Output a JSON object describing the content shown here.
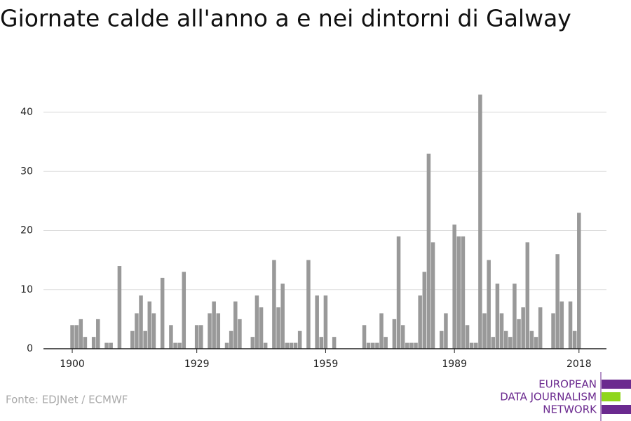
{
  "chart_data": {
    "type": "bar",
    "title": "Giornate calde all'anno a e nei dintorni di Galway",
    "x": [
      1900,
      1901,
      1902,
      1903,
      1904,
      1905,
      1906,
      1907,
      1908,
      1909,
      1910,
      1911,
      1912,
      1913,
      1914,
      1915,
      1916,
      1917,
      1918,
      1919,
      1920,
      1921,
      1922,
      1923,
      1924,
      1925,
      1926,
      1927,
      1928,
      1929,
      1930,
      1931,
      1932,
      1933,
      1934,
      1935,
      1936,
      1937,
      1938,
      1939,
      1940,
      1941,
      1942,
      1943,
      1944,
      1945,
      1946,
      1947,
      1948,
      1949,
      1950,
      1951,
      1952,
      1953,
      1954,
      1955,
      1956,
      1957,
      1958,
      1959,
      1960,
      1961,
      1962,
      1963,
      1964,
      1965,
      1966,
      1967,
      1968,
      1969,
      1970,
      1971,
      1972,
      1973,
      1974,
      1975,
      1976,
      1977,
      1978,
      1979,
      1980,
      1981,
      1982,
      1983,
      1984,
      1985,
      1986,
      1987,
      1988,
      1989,
      1990,
      1991,
      1992,
      1993,
      1994,
      1995,
      1996,
      1997,
      1998,
      1999,
      2000,
      2001,
      2002,
      2003,
      2004,
      2005,
      2006,
      2007,
      2008,
      2009,
      2010,
      2011,
      2012,
      2013,
      2014,
      2015,
      2016,
      2017,
      2018
    ],
    "values": [
      4,
      4,
      5,
      2,
      0,
      2,
      5,
      0,
      1,
      1,
      0,
      14,
      0,
      0,
      3,
      6,
      9,
      3,
      8,
      6,
      0,
      12,
      0,
      4,
      1,
      1,
      13,
      0,
      0,
      4,
      4,
      0,
      6,
      8,
      6,
      0,
      1,
      3,
      8,
      5,
      0,
      0,
      2,
      9,
      7,
      1,
      0,
      15,
      7,
      11,
      1,
      1,
      1,
      3,
      0,
      15,
      0,
      9,
      2,
      9,
      0,
      2,
      0,
      0,
      0,
      0,
      0,
      0,
      4,
      1,
      1,
      1,
      6,
      2,
      0,
      5,
      19,
      4,
      1,
      1,
      1,
      9,
      13,
      33,
      18,
      0,
      3,
      6,
      0,
      21,
      19,
      19,
      4,
      1,
      1,
      43,
      6,
      15,
      2,
      11,
      6,
      3,
      2,
      11,
      5,
      7,
      18,
      3,
      2,
      7,
      0,
      0,
      6,
      16,
      8,
      0,
      8,
      3,
      23
    ],
    "color": "#999999",
    "xlim": [
      1893.3,
      2024.4
    ],
    "xticks": [
      1900,
      1929,
      1959,
      1989,
      2018
    ],
    "ylim": [
      0,
      40
    ],
    "yticks": [
      0,
      10,
      20,
      30,
      40
    ],
    "grid": true,
    "source": "Fonte: EDJNet / ECMWF",
    "logo": [
      "EUROPEAN",
      "DATA JOURNALISM",
      "NETWORK"
    ]
  }
}
